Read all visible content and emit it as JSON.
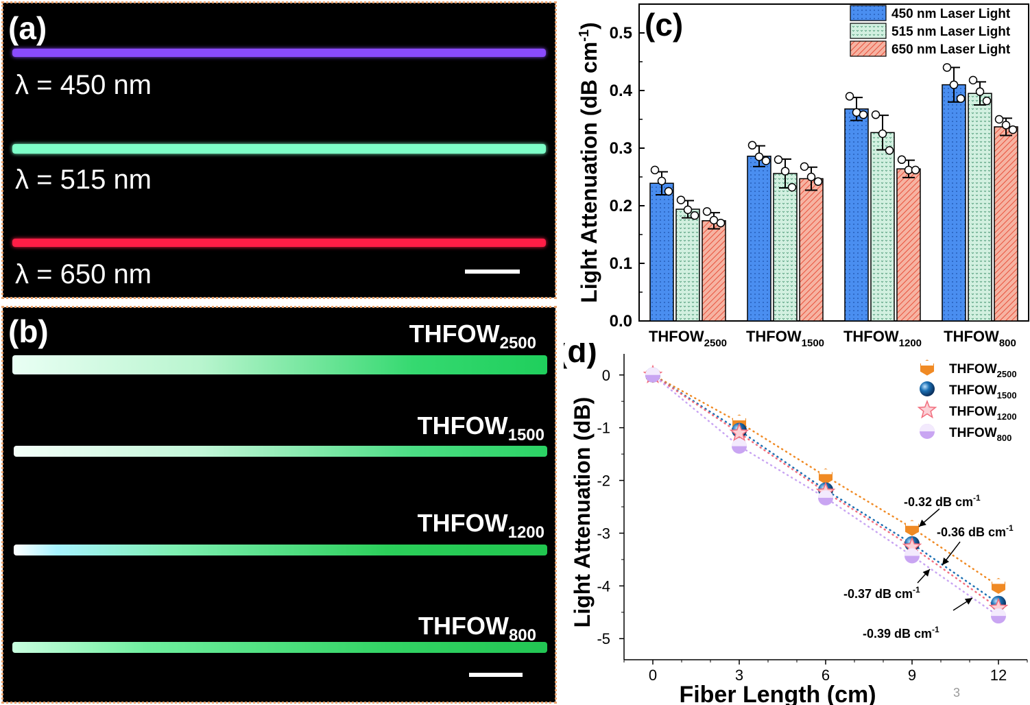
{
  "panel_a": {
    "label": "(a)",
    "wavelengths": [
      {
        "text": "λ = 450 nm",
        "color": "#8a4bff"
      },
      {
        "text": "λ = 515 nm",
        "color": "#7dffc8"
      },
      {
        "text": "λ = 650 nm",
        "color": "#ff1e46"
      }
    ]
  },
  "panel_b": {
    "label": "(b)",
    "fibers": [
      {
        "base": "THFOW",
        "sub": "2500"
      },
      {
        "base": "THFOW",
        "sub": "1500"
      },
      {
        "base": "THFOW",
        "sub": "1200"
      },
      {
        "base": "THFOW",
        "sub": "800"
      }
    ]
  },
  "page_number": "3",
  "chart_data": [
    {
      "panel": "(c)",
      "type": "bar",
      "ylabel": "Light Attenuation (dB cm",
      "ylabel_sup": "-1",
      "ylabel_close": ")",
      "ylim": [
        0,
        0.55
      ],
      "yticks": [
        "0.0",
        "0.1",
        "0.2",
        "0.3",
        "0.4",
        "0.5"
      ],
      "categories": [
        {
          "base": "THFOW",
          "sub": "2500"
        },
        {
          "base": "THFOW",
          "sub": "1500"
        },
        {
          "base": "THFOW",
          "sub": "1200"
        },
        {
          "base": "THFOW",
          "sub": "800"
        }
      ],
      "series": [
        {
          "name": "450 nm Laser Light",
          "color": "#4a8ef0",
          "values": [
            0.239,
            0.286,
            0.368,
            0.41
          ],
          "errors": [
            0.02,
            0.018,
            0.02,
            0.03
          ],
          "points": [
            [
              0.262,
              0.243,
              0.225
            ],
            [
              0.305,
              0.285,
              0.278
            ],
            [
              0.39,
              0.362,
              0.358
            ],
            [
              0.44,
              0.41,
              0.386
            ]
          ]
        },
        {
          "name": "515 nm Laser Light",
          "color": "#c8ecd9",
          "values": [
            0.194,
            0.256,
            0.327,
            0.395
          ],
          "errors": [
            0.015,
            0.025,
            0.03,
            0.02
          ],
          "points": [
            [
              0.21,
              0.193,
              0.183
            ],
            [
              0.28,
              0.26,
              0.232
            ],
            [
              0.358,
              0.325,
              0.296
            ],
            [
              0.418,
              0.398,
              0.382
            ]
          ]
        },
        {
          "name": "650 nm Laser Light",
          "color": "#f29d89",
          "values": [
            0.174,
            0.247,
            0.264,
            0.337
          ],
          "errors": [
            0.014,
            0.02,
            0.015,
            0.015
          ],
          "points": [
            [
              0.19,
              0.175,
              0.17
            ],
            [
              0.268,
              0.25,
              0.242
            ],
            [
              0.28,
              0.262,
              0.262
            ],
            [
              0.35,
              0.34,
              0.332
            ]
          ]
        }
      ]
    },
    {
      "panel": "(d)",
      "type": "scatter",
      "xlabel": "Fiber Length (cm)",
      "ylabel": "Light Attenuation (dB)",
      "xlim": [
        -1,
        13
      ],
      "ylim": [
        -5.4,
        0.4
      ],
      "xticks": [
        "0",
        "3",
        "6",
        "9",
        "12"
      ],
      "yticks": [
        "0",
        "-1",
        "-2",
        "-3",
        "-4",
        "-5"
      ],
      "x": [
        0,
        3,
        6,
        9,
        12
      ],
      "series": [
        {
          "name": {
            "base": "THFOW",
            "sub": "2500"
          },
          "marker": "hexagon",
          "color": "#f08a24",
          "values": [
            0,
            -0.9,
            -1.92,
            -2.9,
            -4.0
          ]
        },
        {
          "name": {
            "base": "THFOW",
            "sub": "1500"
          },
          "marker": "sphere",
          "color": "#1b6fb3",
          "values": [
            0,
            -1.05,
            -2.18,
            -3.2,
            -4.33
          ]
        },
        {
          "name": {
            "base": "THFOW",
            "sub": "1200"
          },
          "marker": "star",
          "color": "#f26d7d",
          "values": [
            0,
            -1.1,
            -2.22,
            -3.26,
            -4.42
          ]
        },
        {
          "name": {
            "base": "THFOW",
            "sub": "800"
          },
          "marker": "half-circle",
          "color": "#c9a5f2",
          "values": [
            0,
            -1.35,
            -2.33,
            -3.43,
            -4.57
          ]
        }
      ],
      "annotations": [
        {
          "text": "-0.32 dB cm",
          "sup": "-1"
        },
        {
          "text": "-0.36 dB cm",
          "sup": "-1"
        },
        {
          "text": "-0.37 dB cm",
          "sup": "-1"
        },
        {
          "text": "-0.39 dB cm",
          "sup": "-1"
        }
      ]
    }
  ]
}
